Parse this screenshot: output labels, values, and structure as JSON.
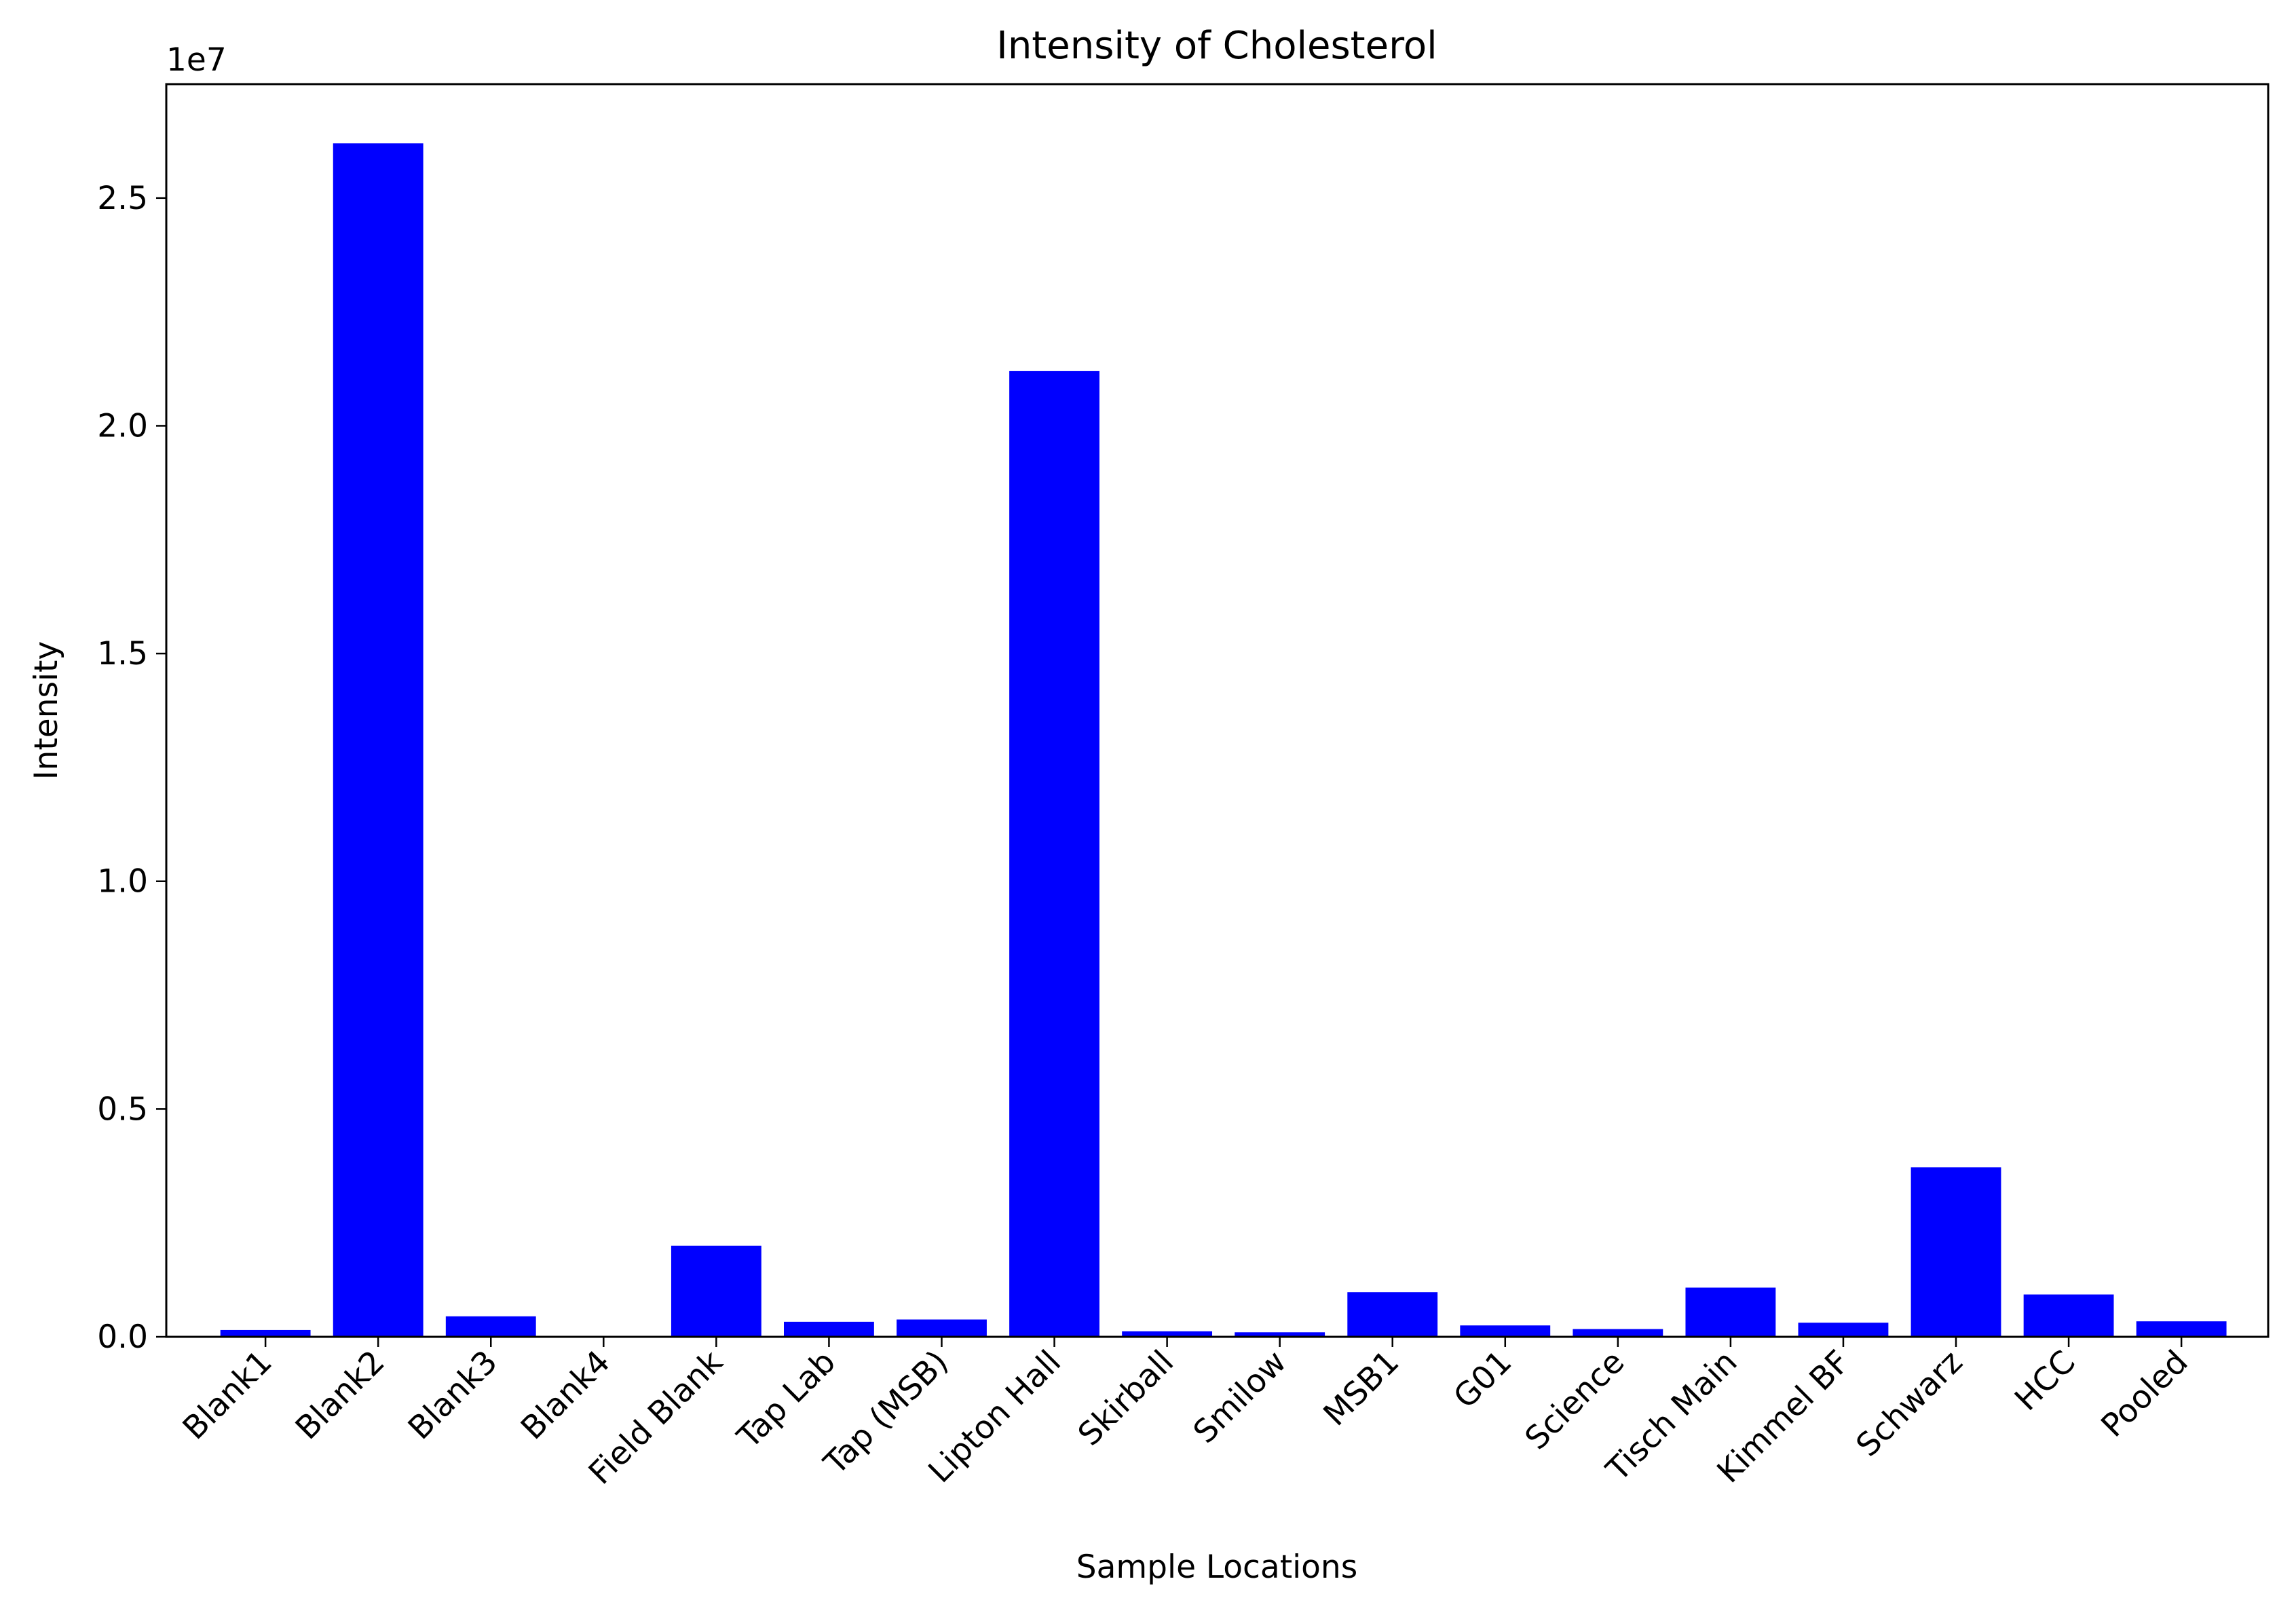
{
  "chart_data": {
    "type": "bar",
    "title": "Intensity of Cholesterol",
    "xlabel": "Sample Locations",
    "ylabel": "Intensity",
    "y_offset_label": "1e7",
    "y_scale": 10000000,
    "categories": [
      "Blank1",
      "Blank2",
      "Blank3",
      "Blank4",
      "Field Blank",
      "Tap Lab",
      "Tap (MSB)",
      "Lipton Hall",
      "Skirball",
      "Smilow",
      "MSB1",
      "G01",
      "Science",
      "Tisch Main",
      "Kimmel BF",
      "Schwarz",
      "HCC",
      "Pooled"
    ],
    "values": [
      150000,
      26200000,
      450000,
      0,
      2000000,
      330000,
      380000,
      21200000,
      120000,
      100000,
      980000,
      250000,
      170000,
      1080000,
      310000,
      3720000,
      930000,
      340000
    ],
    "ylim": [
      0,
      27500000
    ],
    "yticks": [
      0,
      5000000,
      10000000,
      15000000,
      20000000,
      25000000
    ],
    "ytick_labels": [
      "0.0",
      "0.5",
      "1.0",
      "1.5",
      "2.0",
      "2.5"
    ],
    "bar_color": "#0000ff",
    "grid": false,
    "legend": "none"
  }
}
